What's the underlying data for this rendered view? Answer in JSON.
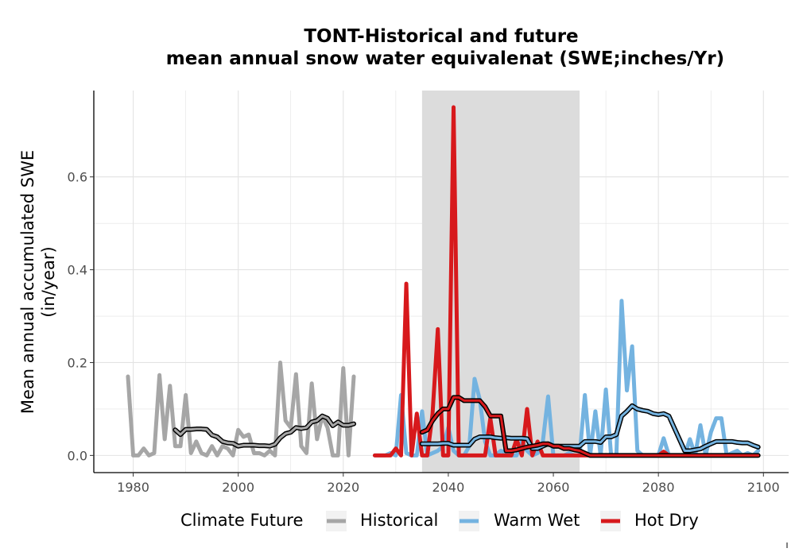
{
  "chart_data": {
    "type": "line",
    "title_line1": "TONT-Historical and future",
    "title_line2": "mean annual snow water equivalenat (SWE;inches/Yr)",
    "ylabel_line1": "Mean annual accumulated SWE",
    "ylabel_line2": "(in/year)",
    "xlabel": "",
    "xlim": [
      1972.5,
      2104.8
    ],
    "ylim": [
      -0.037,
      0.786
    ],
    "xticks": [
      1980,
      2000,
      2020,
      2040,
      2060,
      2080,
      2100
    ],
    "xtick_labels": [
      "1980",
      "2000",
      "2020",
      "2040",
      "2060",
      "2080",
      "2100"
    ],
    "yticks": [
      0.0,
      0.2,
      0.4,
      0.6
    ],
    "ytick_labels": [
      "0.0",
      "0.2",
      "0.4",
      "0.6"
    ],
    "shaded_period": [
      2035,
      2065
    ],
    "grid": true,
    "legend": {
      "position": "bottom",
      "title": "Climate Future",
      "entries": [
        "Historical",
        "Warm Wet",
        "Hot Dry"
      ]
    },
    "colors": {
      "Historical": "#a6a6a6",
      "Warm Wet": "#74b3e0",
      "Hot Dry": "#d7191c",
      "rolling_outline": "#000000",
      "shade": "#dcdcdc",
      "grid": "#e3e3e3"
    },
    "series": [
      {
        "name": "Historical",
        "x": [
          1979,
          1980,
          1981,
          1982,
          1983,
          1984,
          1985,
          1986,
          1987,
          1988,
          1989,
          1990,
          1991,
          1992,
          1993,
          1994,
          1995,
          1996,
          1997,
          1998,
          1999,
          2000,
          2001,
          2002,
          2003,
          2004,
          2005,
          2006,
          2007,
          2008,
          2009,
          2010,
          2011,
          2012,
          2013,
          2014,
          2015,
          2016,
          2017,
          2018,
          2019,
          2020,
          2021,
          2022
        ],
        "y": [
          0.17,
          0.0,
          0.0,
          0.015,
          0.0,
          0.005,
          0.173,
          0.035,
          0.15,
          0.02,
          0.02,
          0.13,
          0.005,
          0.03,
          0.005,
          0.0,
          0.02,
          0.0,
          0.02,
          0.015,
          0.0,
          0.055,
          0.04,
          0.045,
          0.005,
          0.005,
          0.0,
          0.01,
          0.0,
          0.2,
          0.075,
          0.06,
          0.175,
          0.02,
          0.005,
          0.155,
          0.035,
          0.085,
          0.06,
          0.0,
          0.0,
          0.188,
          0.0,
          0.17
        ],
        "rolling_x": [
          1988,
          1989,
          1990,
          1991,
          1992,
          1993,
          1994,
          1995,
          1996,
          1997,
          1998,
          1999,
          2000,
          2001,
          2002,
          2003,
          2004,
          2005,
          2006,
          2007,
          2008,
          2009,
          2010,
          2011,
          2012,
          2013,
          2014,
          2015,
          2016,
          2017,
          2018,
          2019,
          2020,
          2021,
          2022
        ],
        "rolling_y": [
          0.055,
          0.045,
          0.056,
          0.056,
          0.057,
          0.057,
          0.056,
          0.044,
          0.04,
          0.03,
          0.027,
          0.026,
          0.02,
          0.022,
          0.022,
          0.022,
          0.021,
          0.021,
          0.02,
          0.024,
          0.038,
          0.047,
          0.05,
          0.06,
          0.058,
          0.06,
          0.072,
          0.075,
          0.085,
          0.08,
          0.064,
          0.072,
          0.065,
          0.065,
          0.068
        ]
      },
      {
        "name": "Warm Wet",
        "x": [
          2026,
          2027,
          2028,
          2029,
          2030,
          2031,
          2032,
          2033,
          2034,
          2035,
          2036,
          2037,
          2038,
          2039,
          2040,
          2041,
          2042,
          2043,
          2044,
          2045,
          2046,
          2047,
          2048,
          2049,
          2050,
          2051,
          2052,
          2053,
          2054,
          2055,
          2056,
          2057,
          2058,
          2059,
          2060,
          2061,
          2062,
          2063,
          2064,
          2065,
          2066,
          2067,
          2068,
          2069,
          2070,
          2071,
          2072,
          2073,
          2074,
          2075,
          2076,
          2077,
          2078,
          2079,
          2080,
          2081,
          2082,
          2083,
          2084,
          2085,
          2086,
          2087,
          2088,
          2089,
          2090,
          2091,
          2092,
          2093,
          2094,
          2095,
          2096,
          2097,
          2098,
          2099
        ],
        "y": [
          0.0,
          0.0,
          0.0,
          0.005,
          0.0,
          0.13,
          0.005,
          0.0,
          0.0,
          0.095,
          0.0,
          0.005,
          0.01,
          0.02,
          0.06,
          0.01,
          0.0,
          0.0,
          0.02,
          0.165,
          0.12,
          0.03,
          0.0,
          0.0,
          0.01,
          0.005,
          0.0,
          0.0,
          0.03,
          0.01,
          0.0,
          0.005,
          0.03,
          0.127,
          0.0,
          0.0,
          0.0,
          0.005,
          0.0,
          0.0,
          0.13,
          0.0,
          0.095,
          0.0,
          0.142,
          0.0,
          0.0,
          0.333,
          0.14,
          0.235,
          0.01,
          0.0,
          0.0,
          0.0,
          0.0,
          0.037,
          0.0,
          0.0,
          0.0,
          0.0,
          0.035,
          0.0,
          0.065,
          0.0,
          0.05,
          0.08,
          0.08,
          0.0,
          0.005,
          0.01,
          0.0,
          0.005,
          0.0,
          0.01
        ],
        "rolling_x": [
          2035,
          2036,
          2037,
          2038,
          2039,
          2040,
          2041,
          2042,
          2043,
          2044,
          2045,
          2046,
          2047,
          2048,
          2049,
          2050,
          2051,
          2052,
          2053,
          2054,
          2055,
          2056,
          2057,
          2058,
          2059,
          2060,
          2061,
          2062,
          2063,
          2064,
          2065,
          2066,
          2067,
          2068,
          2069,
          2070,
          2071,
          2072,
          2073,
          2074,
          2075,
          2076,
          2077,
          2078,
          2079,
          2080,
          2081,
          2082,
          2083,
          2084,
          2085,
          2086,
          2087,
          2088,
          2089,
          2090,
          2091,
          2092,
          2093,
          2094,
          2095,
          2096,
          2097,
          2098,
          2099
        ],
        "rolling_y": [
          0.025,
          0.025,
          0.025,
          0.025,
          0.026,
          0.026,
          0.022,
          0.022,
          0.022,
          0.022,
          0.035,
          0.04,
          0.04,
          0.04,
          0.038,
          0.037,
          0.038,
          0.037,
          0.037,
          0.037,
          0.036,
          0.015,
          0.015,
          0.02,
          0.025,
          0.02,
          0.02,
          0.02,
          0.02,
          0.02,
          0.02,
          0.03,
          0.03,
          0.03,
          0.028,
          0.04,
          0.04,
          0.045,
          0.085,
          0.095,
          0.107,
          0.1,
          0.097,
          0.095,
          0.09,
          0.088,
          0.09,
          0.085,
          0.06,
          0.035,
          0.01,
          0.01,
          0.012,
          0.014,
          0.02,
          0.025,
          0.03,
          0.03,
          0.03,
          0.03,
          0.028,
          0.027,
          0.027,
          0.022,
          0.018
        ]
      },
      {
        "name": "Hot Dry",
        "x": [
          2026,
          2027,
          2028,
          2029,
          2030,
          2031,
          2032,
          2033,
          2034,
          2035,
          2036,
          2037,
          2038,
          2039,
          2040,
          2041,
          2042,
          2043,
          2044,
          2045,
          2046,
          2047,
          2048,
          2049,
          2050,
          2051,
          2052,
          2053,
          2054,
          2055,
          2056,
          2057,
          2058,
          2059,
          2060,
          2061,
          2062,
          2063,
          2064,
          2065,
          2066,
          2067,
          2068,
          2069,
          2070,
          2071,
          2072,
          2073,
          2074,
          2075,
          2076,
          2077,
          2078,
          2079,
          2080,
          2081,
          2082,
          2083,
          2084,
          2085,
          2086,
          2087,
          2088,
          2089,
          2090,
          2091,
          2092,
          2093,
          2094,
          2095,
          2096,
          2097,
          2098,
          2099
        ],
        "y": [
          0.0,
          0.0,
          0.0,
          0.0,
          0.015,
          0.0,
          0.37,
          0.0,
          0.09,
          0.0,
          0.0,
          0.09,
          0.272,
          0.0,
          0.0,
          0.75,
          0.0,
          0.0,
          0.0,
          0.0,
          0.0,
          0.0,
          0.08,
          0.0,
          0.0,
          0.0,
          0.0,
          0.035,
          0.0,
          0.1,
          0.0,
          0.03,
          0.0,
          0.0,
          0.0,
          0.0,
          0.0,
          0.0,
          0.0,
          0.0,
          0.0,
          0.0,
          0.0,
          0.0,
          0.0,
          0.0,
          0.0,
          0.0,
          0.0,
          0.0,
          0.0,
          0.0,
          0.0,
          0.0,
          0.0,
          0.008,
          0.0,
          0.0,
          0.0,
          0.0,
          0.0,
          0.0,
          0.0,
          0.0,
          0.0,
          0.0,
          0.0,
          0.0,
          0.0,
          0.0,
          0.0,
          0.0,
          0.0,
          0.0
        ],
        "rolling_x": [
          2035,
          2036,
          2037,
          2038,
          2039,
          2040,
          2041,
          2042,
          2043,
          2044,
          2045,
          2046,
          2047,
          2048,
          2049,
          2050,
          2051,
          2052,
          2053,
          2054,
          2055,
          2056,
          2057,
          2058,
          2059,
          2060,
          2061,
          2062,
          2063,
          2064,
          2065,
          2066,
          2067,
          2068,
          2069,
          2070,
          2071,
          2072,
          2073,
          2074,
          2075,
          2076,
          2077,
          2078,
          2079,
          2080,
          2081,
          2082,
          2083,
          2084,
          2085,
          2086,
          2087,
          2088,
          2089,
          2090,
          2091,
          2092,
          2093,
          2094,
          2095,
          2096,
          2097,
          2098,
          2099
        ],
        "rolling_y": [
          0.05,
          0.055,
          0.075,
          0.09,
          0.1,
          0.1,
          0.125,
          0.125,
          0.118,
          0.118,
          0.118,
          0.118,
          0.105,
          0.085,
          0.085,
          0.085,
          0.01,
          0.01,
          0.012,
          0.015,
          0.018,
          0.02,
          0.022,
          0.025,
          0.025,
          0.02,
          0.02,
          0.015,
          0.015,
          0.012,
          0.01,
          0.005,
          0.0,
          0.0,
          0.0,
          0.0,
          0.0,
          0.0,
          0.0,
          0.0,
          0.0,
          0.0,
          0.0,
          0.0,
          0.0,
          0.0,
          0.0,
          0.0,
          0.0,
          0.0,
          0.0,
          0.0,
          0.0,
          0.0,
          0.0,
          0.0,
          0.0,
          0.0,
          0.0,
          0.0,
          0.0,
          0.0,
          0.0,
          0.0,
          0.0
        ]
      }
    ]
  }
}
